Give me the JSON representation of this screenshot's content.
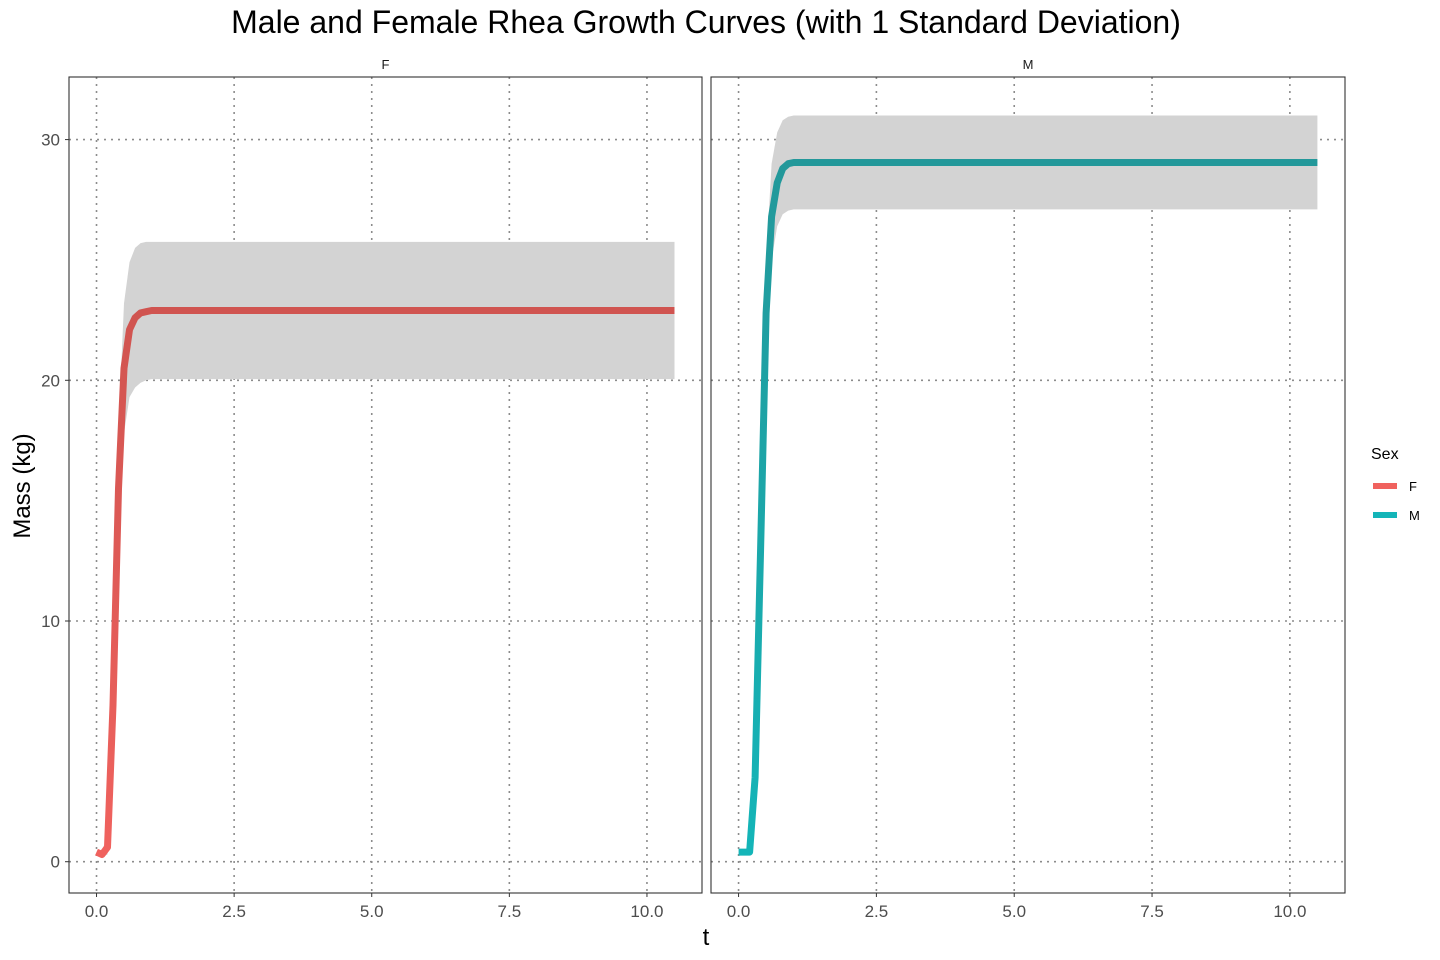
{
  "chart_data": {
    "type": "line",
    "title": "Male and Female Rhea Growth Curves (with 1 Standard Deviation)",
    "xlabel": "t",
    "ylabel": "Mass (kg)",
    "xlim": [
      -0.5,
      11.0
    ],
    "ylim": [
      -1.3,
      32.6
    ],
    "x_ticks": [
      "0.0",
      "2.5",
      "5.0",
      "7.5",
      "10.0"
    ],
    "y_ticks": [
      "0",
      "10",
      "20",
      "30"
    ],
    "grid": true,
    "legend": {
      "title": "Sex",
      "position": "right",
      "entries": [
        "F",
        "M"
      ]
    },
    "panels": [
      {
        "label": "F",
        "series": {
          "name": "F",
          "color": "#d05450",
          "color_light": "#f0625e",
          "x": [
            0.0,
            0.1,
            0.2,
            0.3,
            0.4,
            0.5,
            0.6,
            0.7,
            0.8,
            0.9,
            1.0,
            1.2,
            1.5,
            2.0,
            3.0,
            5.0,
            7.5,
            10.0,
            10.5
          ],
          "y": [
            0.4,
            0.3,
            0.6,
            6.5,
            15.5,
            20.5,
            22.1,
            22.6,
            22.8,
            22.85,
            22.9,
            22.9,
            22.9,
            22.9,
            22.9,
            22.9,
            22.9,
            22.9,
            22.9
          ],
          "upper": [
            0.4,
            0.5,
            1.0,
            9.0,
            18.0,
            23.2,
            24.9,
            25.5,
            25.7,
            25.75,
            25.75,
            25.75,
            25.75,
            25.75,
            25.75,
            25.75,
            25.75,
            25.75,
            25.75
          ],
          "lower": [
            0.4,
            0.2,
            0.3,
            4.5,
            13.0,
            17.8,
            19.3,
            19.7,
            19.9,
            20.0,
            20.05,
            20.05,
            20.05,
            20.05,
            20.05,
            20.05,
            20.05,
            20.05,
            20.05
          ]
        }
      },
      {
        "label": "M",
        "series": {
          "name": "M",
          "color": "#23989a",
          "color_light": "#14b5b8",
          "x": [
            0.0,
            0.1,
            0.2,
            0.3,
            0.4,
            0.5,
            0.6,
            0.7,
            0.8,
            0.9,
            1.0,
            1.2,
            1.5,
            2.0,
            3.0,
            5.0,
            7.5,
            10.0,
            10.5
          ],
          "y": [
            0.4,
            0.4,
            0.4,
            3.5,
            13.0,
            22.8,
            26.8,
            28.2,
            28.8,
            29.0,
            29.05,
            29.05,
            29.05,
            29.05,
            29.05,
            29.05,
            29.05,
            29.05,
            29.05
          ],
          "upper": [
            0.4,
            0.4,
            0.6,
            5.0,
            15.0,
            25.0,
            29.0,
            30.3,
            30.8,
            30.95,
            31.0,
            31.0,
            31.0,
            31.0,
            31.0,
            31.0,
            31.0,
            31.0,
            31.0
          ],
          "lower": [
            0.4,
            0.4,
            0.3,
            2.0,
            11.0,
            20.5,
            25.0,
            26.4,
            26.9,
            27.05,
            27.1,
            27.1,
            27.1,
            27.1,
            27.1,
            27.1,
            27.1,
            27.1,
            27.1
          ]
        }
      }
    ]
  }
}
